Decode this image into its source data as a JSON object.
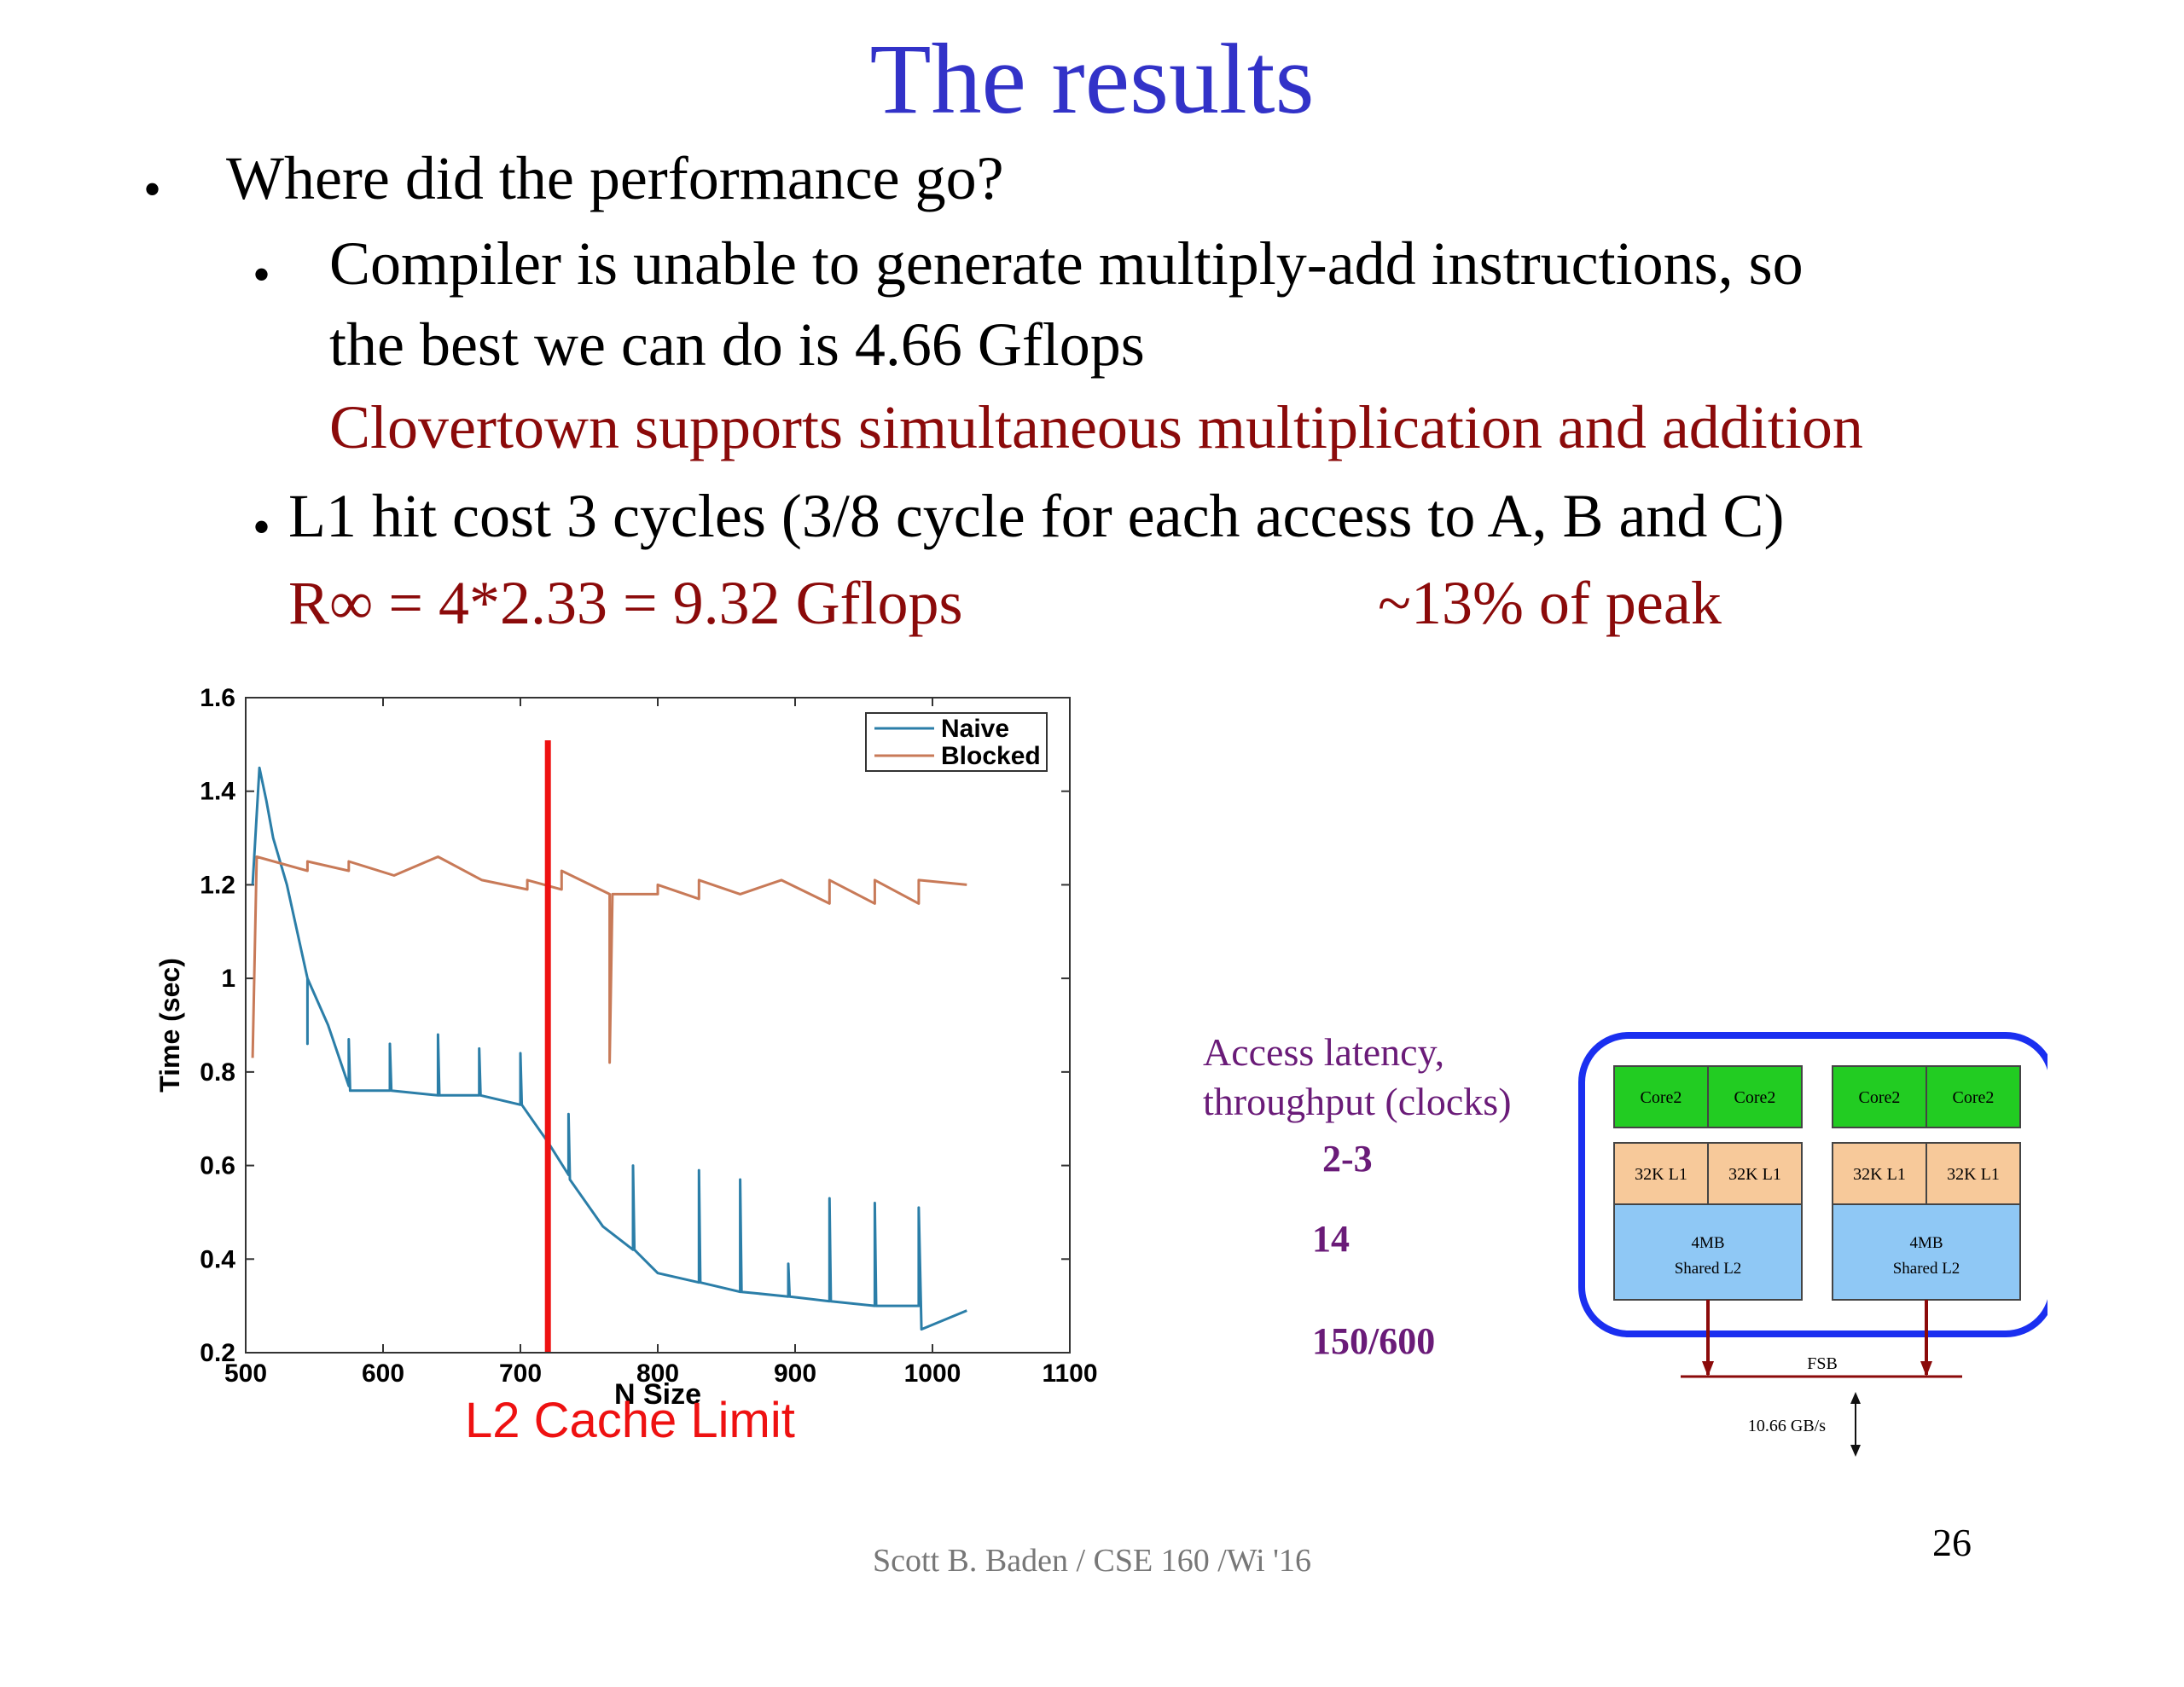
{
  "slide": {
    "title": "The results",
    "bullet1": "Where did the performance  go?",
    "sub1_line1": "Compiler is unable to generate  multiply-add instructions, so",
    "sub1_line2": "the best we can do is 4.66 Gflops",
    "sub1_red": "Clovertown supports simultaneous multiplication and addition",
    "sub2": "L1 hit cost 3 cycles (3/8 cycle for each access to A, B and C)",
    "rinf": "R∞ = 4*2.33 = 9.32 Gflops",
    "peak": "~13% of peak",
    "bullet_glyph": "•",
    "footer": "Scott B. Baden / CSE 160 /Wi '16",
    "page_number": "26"
  },
  "chart_data": {
    "type": "line",
    "xlabel": "N Size",
    "ylabel": "Time (sec)",
    "xlim": [
      500,
      1100
    ],
    "ylim": [
      0.2,
      1.6
    ],
    "xticks": [
      "500",
      "600",
      "700",
      "800",
      "900",
      "1000",
      "1100"
    ],
    "yticks": [
      "0.2",
      "0.4",
      "0.6",
      "0.8",
      "1",
      "1.2",
      "1.4",
      "1.6"
    ],
    "legend_position": "top-right",
    "annotation": "L2 Cache Limit",
    "annotation_x": 720,
    "series": [
      {
        "name": "Naive",
        "color": "#2b7ea8",
        "points": [
          [
            505,
            1.2
          ],
          [
            510,
            1.45
          ],
          [
            515,
            1.38
          ],
          [
            520,
            1.3
          ],
          [
            530,
            1.2
          ],
          [
            545,
            1.0
          ],
          [
            545,
            0.86
          ],
          [
            545,
            1.0
          ],
          [
            560,
            0.9
          ],
          [
            575,
            0.77
          ],
          [
            575,
            0.87
          ],
          [
            576,
            0.76
          ],
          [
            605,
            0.76
          ],
          [
            605,
            0.86
          ],
          [
            606,
            0.76
          ],
          [
            640,
            0.75
          ],
          [
            640,
            0.88
          ],
          [
            641,
            0.75
          ],
          [
            670,
            0.75
          ],
          [
            670,
            0.85
          ],
          [
            671,
            0.75
          ],
          [
            700,
            0.73
          ],
          [
            700,
            0.84
          ],
          [
            701,
            0.73
          ],
          [
            720,
            0.65
          ],
          [
            735,
            0.58
          ],
          [
            735,
            0.71
          ],
          [
            736,
            0.57
          ],
          [
            760,
            0.47
          ],
          [
            782,
            0.42
          ],
          [
            782,
            0.6
          ],
          [
            783,
            0.42
          ],
          [
            800,
            0.37
          ],
          [
            830,
            0.35
          ],
          [
            830,
            0.59
          ],
          [
            831,
            0.35
          ],
          [
            860,
            0.33
          ],
          [
            860,
            0.57
          ],
          [
            861,
            0.33
          ],
          [
            895,
            0.32
          ],
          [
            895,
            0.39
          ],
          [
            896,
            0.32
          ],
          [
            925,
            0.31
          ],
          [
            925,
            0.53
          ],
          [
            926,
            0.31
          ],
          [
            958,
            0.3
          ],
          [
            958,
            0.52
          ],
          [
            959,
            0.3
          ],
          [
            990,
            0.3
          ],
          [
            990,
            0.51
          ],
          [
            992,
            0.25
          ],
          [
            1025,
            0.29
          ]
        ]
      },
      {
        "name": "Blocked",
        "color": "#c87a58",
        "points": [
          [
            505,
            0.83
          ],
          [
            508,
            1.26
          ],
          [
            545,
            1.23
          ],
          [
            545,
            1.25
          ],
          [
            575,
            1.23
          ],
          [
            575,
            1.25
          ],
          [
            608,
            1.22
          ],
          [
            640,
            1.26
          ],
          [
            672,
            1.21
          ],
          [
            705,
            1.19
          ],
          [
            705,
            1.21
          ],
          [
            730,
            1.19
          ],
          [
            730,
            1.23
          ],
          [
            765,
            1.18
          ],
          [
            765,
            0.82
          ],
          [
            767,
            1.18
          ],
          [
            800,
            1.18
          ],
          [
            800,
            1.2
          ],
          [
            830,
            1.17
          ],
          [
            830,
            1.21
          ],
          [
            860,
            1.18
          ],
          [
            890,
            1.21
          ],
          [
            925,
            1.16
          ],
          [
            925,
            1.21
          ],
          [
            958,
            1.16
          ],
          [
            958,
            1.21
          ],
          [
            990,
            1.16
          ],
          [
            990,
            1.21
          ],
          [
            1025,
            1.2
          ]
        ]
      }
    ]
  },
  "latency": {
    "label_line1": "Access latency,",
    "label_line2": "throughput (clocks)",
    "l1": "2-3",
    "l2": "14",
    "mem": "150/600"
  },
  "diagram": {
    "core_label": "Core2",
    "l1_label": "32K L1",
    "l2_line1": "4MB",
    "l2_line2": "Shared L2",
    "fsb": "FSB",
    "bandwidth": "10.66 GB/s",
    "colors": {
      "core": "#22cc22",
      "l1": "#f7c99a",
      "l2": "#8fc8f5",
      "frame": "#1a2ff0",
      "bus": "#8b0a0a"
    }
  }
}
